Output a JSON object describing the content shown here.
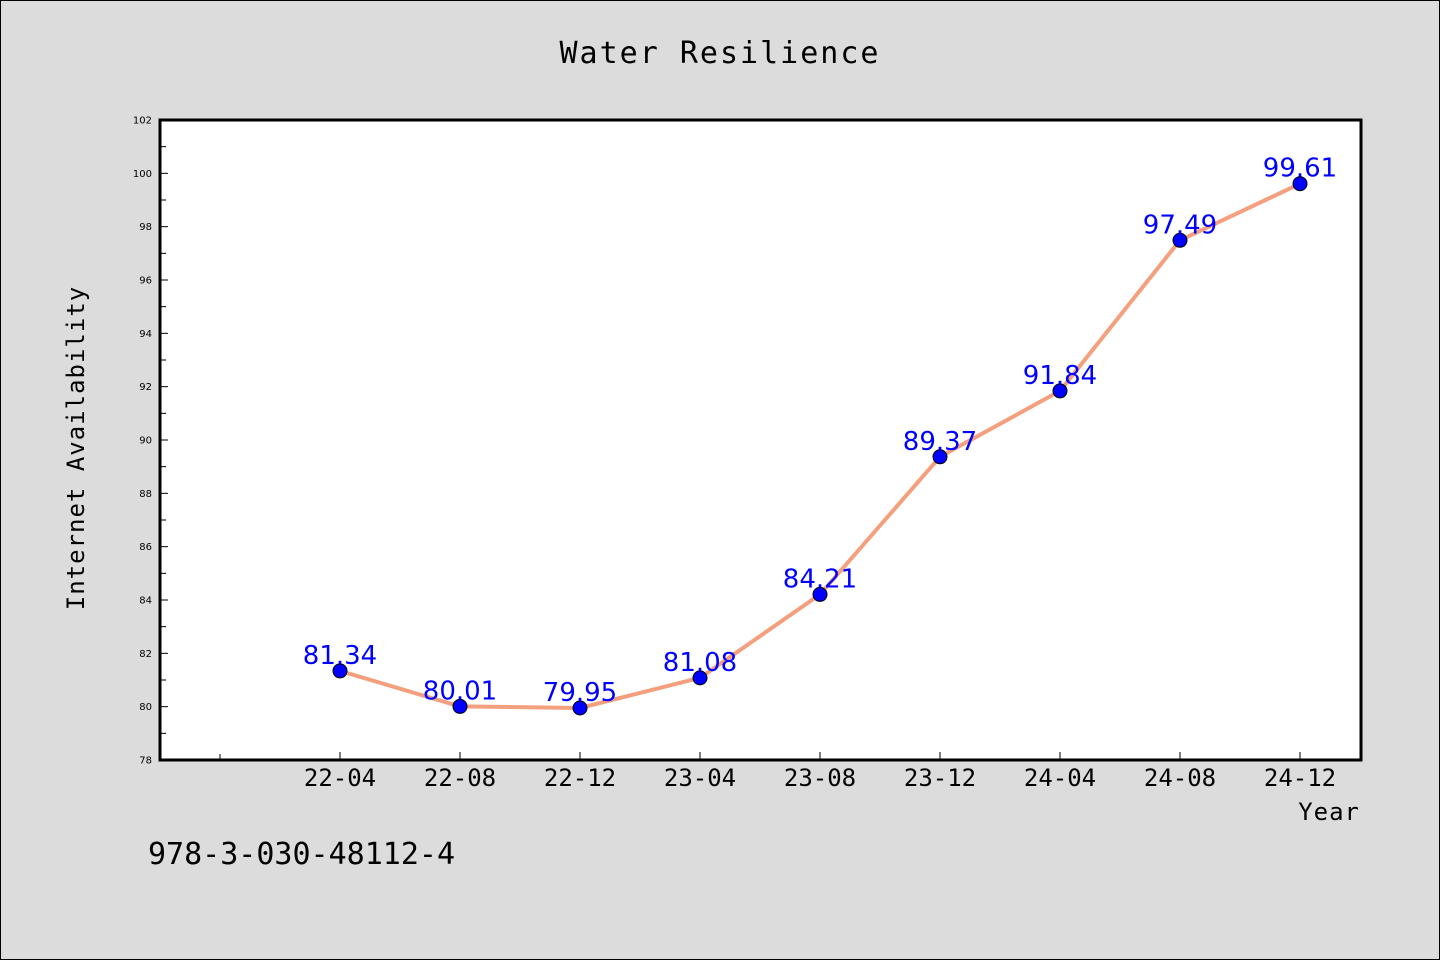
{
  "footer_text": "978-3-030-48112-4",
  "chart_data": {
    "type": "line",
    "title": "Water Resilience",
    "xlabel": "Year",
    "ylabel": "Internet Availability",
    "categories": [
      "22-04",
      "22-08",
      "22-12",
      "23-04",
      "23-08",
      "23-12",
      "24-04",
      "24-08",
      "24-12"
    ],
    "values": [
      81.34,
      80.01,
      79.95,
      81.08,
      84.21,
      89.37,
      91.84,
      97.49,
      99.61
    ],
    "ylim": [
      78,
      102
    ],
    "yticks": [
      78,
      80,
      82,
      84,
      86,
      88,
      90,
      92,
      94,
      96,
      98,
      100,
      102
    ],
    "data_labels": [
      "81.34",
      "80.01",
      "79.95",
      "81.08",
      "84.21",
      "89.37",
      "91.84",
      "97.49",
      "99.61"
    ],
    "line_color": "#f4a07e",
    "marker_color": "#0000ff",
    "label_color": "#0000ff",
    "grid": false,
    "legend": "none"
  }
}
